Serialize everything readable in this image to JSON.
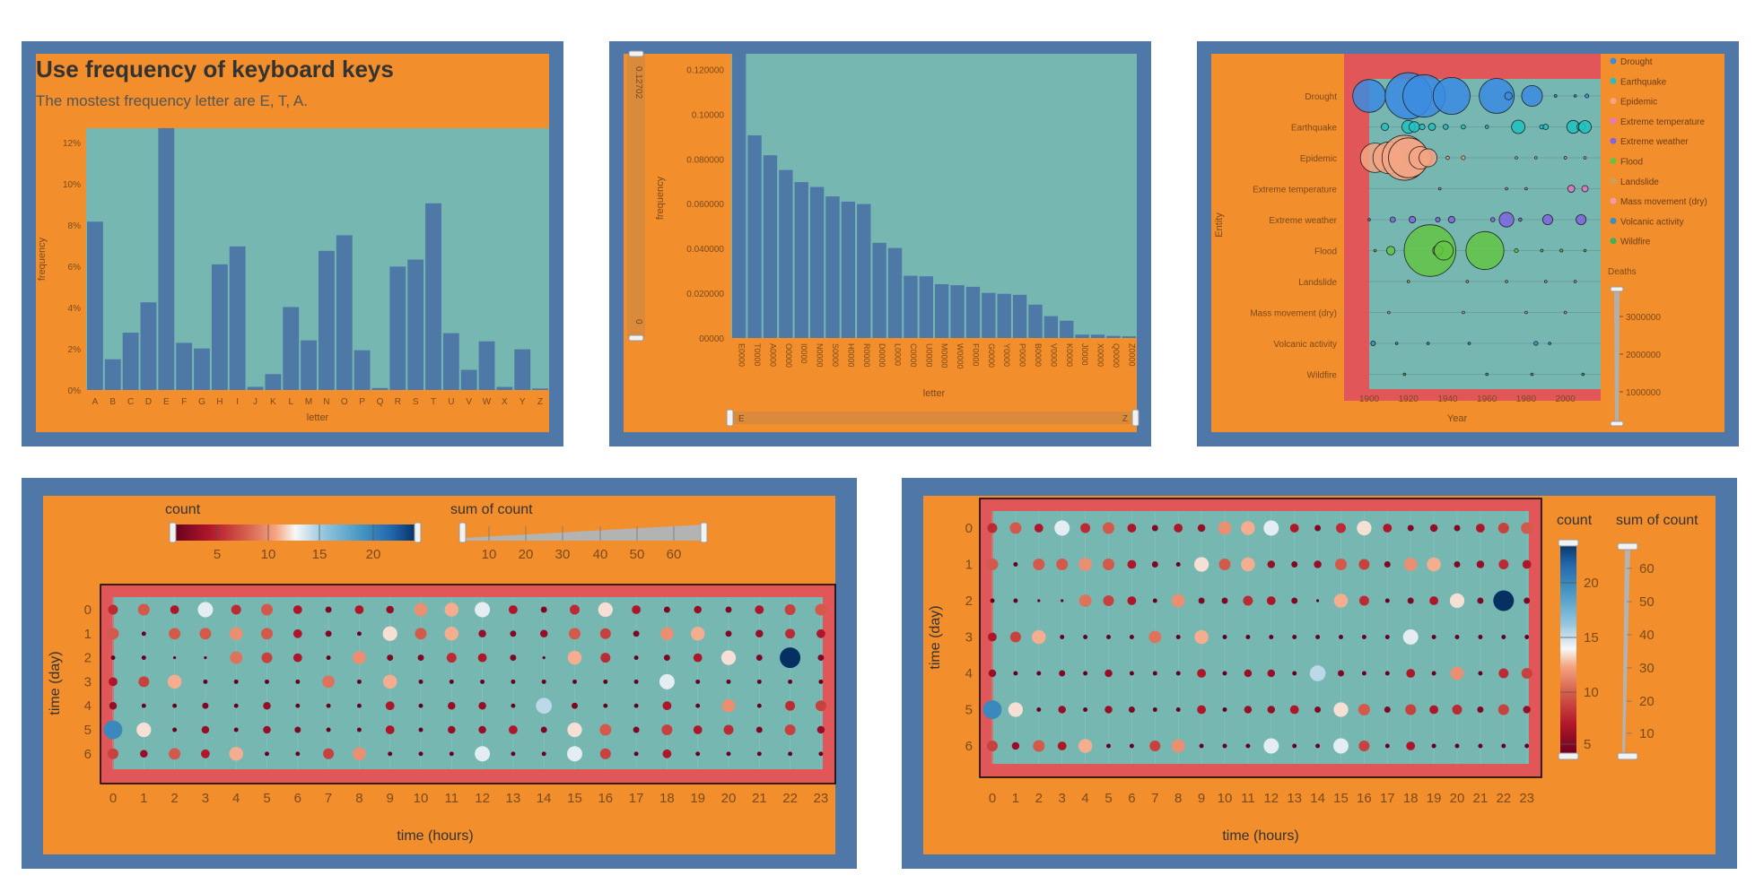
{
  "colors": {
    "frame": "#4f77a8",
    "orange": "#f28e2b",
    "teal": "#76b7b2",
    "red": "#e15759",
    "bar": "#4e79a7",
    "bubbleStroke": "#222222"
  },
  "chart_data": [
    {
      "type": "bar",
      "title": "Use frequency of keyboard keys",
      "subtitle": "The mostest frequency letter are E, T, A.",
      "xlabel": "letter",
      "ylabel": "frequency",
      "categories": [
        "A",
        "B",
        "C",
        "D",
        "E",
        "F",
        "G",
        "H",
        "I",
        "J",
        "K",
        "L",
        "M",
        "N",
        "O",
        "P",
        "Q",
        "R",
        "S",
        "T",
        "U",
        "V",
        "W",
        "X",
        "Y",
        "Z"
      ],
      "values": [
        0.08167,
        0.01492,
        0.02782,
        0.04253,
        0.12702,
        0.02288,
        0.02015,
        0.06094,
        0.06966,
        0.00153,
        0.00772,
        0.04025,
        0.02406,
        0.06749,
        0.07507,
        0.01929,
        0.00095,
        0.05987,
        0.06327,
        0.09056,
        0.02758,
        0.00978,
        0.0236,
        0.0015,
        0.01974,
        0.00074
      ],
      "yticks": [
        "0%",
        "2%",
        "4%",
        "6%",
        "8%",
        "10%",
        "12%"
      ],
      "ylim": [
        0,
        0.127
      ]
    },
    {
      "type": "bar",
      "xlabel": "letter",
      "ylabel": "frequency",
      "categories": [
        "E",
        "T",
        "A",
        "O",
        "I",
        "N",
        "S",
        "H",
        "R",
        "D",
        "L",
        "C",
        "U",
        "M",
        "W",
        "F",
        "G",
        "Y",
        "P",
        "B",
        "V",
        "K",
        "J",
        "X",
        "Q",
        "Z"
      ],
      "tick_labels": [
        "E0000",
        "T0000",
        "A0000",
        "O0000",
        "I0000",
        "N0000",
        "S0000",
        "H0000",
        "R0000",
        "D0000",
        "L0000",
        "C0000",
        "U0000",
        "M0000",
        "W0000",
        "F0000",
        "G0000",
        "Y0000",
        "P0000",
        "B0000",
        "V0000",
        "K0000",
        "J0000",
        "X0000",
        "Q0000",
        "Z0000"
      ],
      "values": [
        0.12702,
        0.09056,
        0.08167,
        0.07507,
        0.06966,
        0.06749,
        0.06327,
        0.06094,
        0.05987,
        0.04253,
        0.04025,
        0.02782,
        0.02758,
        0.02406,
        0.0236,
        0.02288,
        0.02015,
        0.01974,
        0.01929,
        0.01492,
        0.00978,
        0.00772,
        0.00153,
        0.0015,
        0.00095,
        0.00074
      ],
      "yticks": [
        "00000",
        "0.020000",
        "0.040000",
        "0.060000",
        "0.080000",
        "0.10000",
        "0.120000"
      ],
      "ylim": [
        0,
        0.127
      ],
      "slider": {
        "top_label": "0.12702",
        "bottom_label": "0",
        "start_label": "E",
        "end_label": "Z"
      }
    },
    {
      "type": "scatter",
      "xlabel": "Year",
      "ylabel": "Entity",
      "xlim": [
        1900,
        2018
      ],
      "xticks": [
        {
          "v": 1900,
          "l": "1900"
        },
        {
          "v": 1920,
          "l": "1920"
        },
        {
          "v": 1940,
          "l": "1940"
        },
        {
          "v": 1960,
          "l": "1960"
        },
        {
          "v": 1980,
          "l": "1980"
        },
        {
          "v": 2000,
          "l": "2000"
        }
      ],
      "entities": [
        "Drought",
        "Earthquake",
        "Epidemic",
        "Extreme temperature",
        "Extreme weather",
        "Flood",
        "Landslide",
        "Mass movement (dry)",
        "Volcanic activity",
        "Wildfire"
      ],
      "legend": [
        {
          "label": "Drought",
          "color": "#3b8be0"
        },
        {
          "label": "Earthquake",
          "color": "#1fc2c2"
        },
        {
          "label": "Epidemic",
          "color": "#f4a582"
        },
        {
          "label": "Extreme temperature",
          "color": "#e377c2"
        },
        {
          "label": "Extreme weather",
          "color": "#8064e0"
        },
        {
          "label": "Flood",
          "color": "#63c443"
        },
        {
          "label": "Landslide",
          "color": "#c9a15a"
        },
        {
          "label": "Mass movement (dry)",
          "color": "#f29bb0"
        },
        {
          "label": "Volcanic activity",
          "color": "#3a8fbf"
        },
        {
          "label": "Wildfire",
          "color": "#3db05a"
        }
      ],
      "size_legend": {
        "title": "Deaths",
        "ticks": [
          "3000000",
          "2000000",
          "1000000"
        ],
        "max": 3500000
      },
      "points": [
        {
          "e": 0,
          "x": 1900,
          "d": 1500000
        },
        {
          "e": 0,
          "x": 1920,
          "d": 3000000
        },
        {
          "e": 0,
          "x": 1928,
          "d": 2500000
        },
        {
          "e": 0,
          "x": 1942,
          "d": 1900000
        },
        {
          "e": 0,
          "x": 1965,
          "d": 1700000
        },
        {
          "e": 0,
          "x": 1983,
          "d": 600000
        },
        {
          "e": 0,
          "x": 1971,
          "d": 80000
        },
        {
          "e": 0,
          "x": 1995,
          "d": 10000
        },
        {
          "e": 0,
          "x": 2005,
          "d": 8000
        },
        {
          "e": 0,
          "x": 2011,
          "d": 20000
        },
        {
          "e": 1,
          "x": 1908,
          "d": 75000
        },
        {
          "e": 1,
          "x": 1920,
          "d": 235000
        },
        {
          "e": 1,
          "x": 1923,
          "d": 150000
        },
        {
          "e": 1,
          "x": 1927,
          "d": 45000
        },
        {
          "e": 1,
          "x": 1932,
          "d": 70000
        },
        {
          "e": 1,
          "x": 1939,
          "d": 35000
        },
        {
          "e": 1,
          "x": 1948,
          "d": 25000
        },
        {
          "e": 1,
          "x": 1960,
          "d": 15000
        },
        {
          "e": 1,
          "x": 1976,
          "d": 250000
        },
        {
          "e": 1,
          "x": 1988,
          "d": 25000
        },
        {
          "e": 1,
          "x": 1990,
          "d": 40000
        },
        {
          "e": 1,
          "x": 2004,
          "d": 230000
        },
        {
          "e": 1,
          "x": 2008,
          "d": 90000
        },
        {
          "e": 1,
          "x": 2010,
          "d": 220000
        },
        {
          "e": 2,
          "x": 1903,
          "d": 1200000
        },
        {
          "e": 2,
          "x": 1910,
          "d": 1400000
        },
        {
          "e": 2,
          "x": 1918,
          "d": 2800000
        },
        {
          "e": 2,
          "x": 1920,
          "d": 2200000
        },
        {
          "e": 2,
          "x": 1926,
          "d": 700000
        },
        {
          "e": 2,
          "x": 1930,
          "d": 450000
        },
        {
          "e": 2,
          "x": 1940,
          "d": 15000
        },
        {
          "e": 2,
          "x": 1948,
          "d": 20000
        },
        {
          "e": 2,
          "x": 1975,
          "d": 6000
        },
        {
          "e": 2,
          "x": 1985,
          "d": 5000
        },
        {
          "e": 2,
          "x": 2000,
          "d": 9000
        },
        {
          "e": 2,
          "x": 2010,
          "d": 8000
        },
        {
          "e": 3,
          "x": 1936,
          "d": 3000
        },
        {
          "e": 3,
          "x": 1970,
          "d": 2000
        },
        {
          "e": 3,
          "x": 1980,
          "d": 1500
        },
        {
          "e": 3,
          "x": 2003,
          "d": 70000
        },
        {
          "e": 3,
          "x": 2010,
          "d": 55000
        },
        {
          "e": 4,
          "x": 1900,
          "d": 6000
        },
        {
          "e": 4,
          "x": 1912,
          "d": 40000
        },
        {
          "e": 4,
          "x": 1922,
          "d": 60000
        },
        {
          "e": 4,
          "x": 1935,
          "d": 30000
        },
        {
          "e": 4,
          "x": 1942,
          "d": 60000
        },
        {
          "e": 4,
          "x": 1963,
          "d": 25000
        },
        {
          "e": 4,
          "x": 1970,
          "d": 300000
        },
        {
          "e": 4,
          "x": 1977,
          "d": 15000
        },
        {
          "e": 4,
          "x": 1991,
          "d": 140000
        },
        {
          "e": 4,
          "x": 2008,
          "d": 140000
        },
        {
          "e": 5,
          "x": 1903,
          "d": 3000
        },
        {
          "e": 5,
          "x": 1911,
          "d": 100000
        },
        {
          "e": 5,
          "x": 1931,
          "d": 3700000
        },
        {
          "e": 5,
          "x": 1935,
          "d": 145000
        },
        {
          "e": 5,
          "x": 1938,
          "d": 500000
        },
        {
          "e": 5,
          "x": 1959,
          "d": 2000000
        },
        {
          "e": 5,
          "x": 1975,
          "d": 20000
        },
        {
          "e": 5,
          "x": 1988,
          "d": 10000
        },
        {
          "e": 5,
          "x": 1998,
          "d": 12000
        },
        {
          "e": 5,
          "x": 2010,
          "d": 5000
        },
        {
          "e": 6,
          "x": 1920,
          "d": 5000
        },
        {
          "e": 6,
          "x": 1950,
          "d": 1500
        },
        {
          "e": 6,
          "x": 1970,
          "d": 3000
        },
        {
          "e": 6,
          "x": 1990,
          "d": 2000
        },
        {
          "e": 6,
          "x": 2005,
          "d": 1500
        },
        {
          "e": 7,
          "x": 1910,
          "d": 500
        },
        {
          "e": 7,
          "x": 1948,
          "d": 600
        },
        {
          "e": 7,
          "x": 1980,
          "d": 300
        },
        {
          "e": 7,
          "x": 2000,
          "d": 400
        },
        {
          "e": 8,
          "x": 1902,
          "d": 29000
        },
        {
          "e": 8,
          "x": 1914,
          "d": 1000
        },
        {
          "e": 8,
          "x": 1930,
          "d": 1500
        },
        {
          "e": 8,
          "x": 1951,
          "d": 3000
        },
        {
          "e": 8,
          "x": 1985,
          "d": 23000
        },
        {
          "e": 8,
          "x": 1992,
          "d": 800
        },
        {
          "e": 9,
          "x": 1918,
          "d": 1000
        },
        {
          "e": 9,
          "x": 1960,
          "d": 200
        },
        {
          "e": 9,
          "x": 1983,
          "d": 300
        },
        {
          "e": 9,
          "x": 2009,
          "d": 200
        }
      ]
    },
    {
      "type": "scatter",
      "xlabel": "time (hours)",
      "ylabel": "time (day)",
      "xticks": [
        "0",
        "1",
        "2",
        "3",
        "4",
        "5",
        "6",
        "7",
        "8",
        "9",
        "10",
        "11",
        "12",
        "13",
        "14",
        "15",
        "16",
        "17",
        "18",
        "19",
        "20",
        "21",
        "22",
        "23"
      ],
      "yticks": [
        "0",
        "1",
        "2",
        "3",
        "4",
        "5",
        "6"
      ],
      "color_legend": {
        "title": "count",
        "ticks": [
          "5",
          "10",
          "15",
          "20"
        ]
      },
      "size_legend": {
        "title": "sum of count",
        "ticks": [
          "10",
          "20",
          "30",
          "40",
          "50",
          "60"
        ]
      },
      "counts": [
        [
          5,
          7,
          4,
          12,
          5,
          7,
          4,
          2,
          4,
          3,
          9,
          10,
          12,
          4,
          2,
          5,
          11,
          4,
          2,
          3,
          2,
          4,
          6,
          7
        ],
        [
          7,
          1,
          7,
          7,
          9,
          7,
          4,
          2,
          1,
          11,
          7,
          10,
          3,
          2,
          3,
          7,
          6,
          2,
          9,
          10,
          2,
          3,
          5,
          4
        ],
        [
          1,
          1,
          0,
          0,
          8,
          6,
          4,
          1,
          9,
          2,
          2,
          5,
          4,
          2,
          0,
          10,
          5,
          1,
          2,
          4,
          11,
          2,
          22,
          2
        ],
        [
          4,
          6,
          10,
          1,
          1,
          1,
          1,
          8,
          1,
          10,
          1,
          1,
          1,
          1,
          1,
          1,
          1,
          1,
          12,
          1,
          1,
          1,
          1,
          1
        ],
        [
          3,
          1,
          1,
          2,
          1,
          3,
          1,
          1,
          1,
          4,
          1,
          3,
          3,
          1,
          13,
          2,
          1,
          1,
          4,
          1,
          9,
          1,
          5,
          6
        ],
        [
          18,
          11,
          1,
          3,
          1,
          3,
          2,
          1,
          1,
          4,
          1,
          3,
          3,
          4,
          2,
          11,
          7,
          2,
          6,
          4,
          5,
          2,
          6,
          3
        ],
        [
          6,
          3,
          7,
          4,
          10,
          1,
          1,
          6,
          9,
          1,
          1,
          1,
          12,
          1,
          1,
          12,
          6,
          1,
          4,
          1,
          1,
          1,
          1,
          1
        ]
      ]
    },
    {
      "type": "scatter",
      "xlabel": "time (hours)",
      "ylabel": "time (day)",
      "xticks": [
        "0",
        "1",
        "2",
        "3",
        "4",
        "5",
        "6",
        "7",
        "8",
        "9",
        "10",
        "11",
        "12",
        "13",
        "14",
        "15",
        "16",
        "17",
        "18",
        "19",
        "20",
        "21",
        "22",
        "23"
      ],
      "yticks": [
        "0",
        "1",
        "2",
        "3",
        "4",
        "5",
        "6"
      ],
      "color_legend": {
        "title": "count",
        "ticks": [
          "20",
          "15",
          "10",
          "5"
        ]
      },
      "size_legend": {
        "title": "sum of count",
        "ticks": [
          "60",
          "50",
          "40",
          "30",
          "20",
          "10"
        ]
      },
      "counts": [
        [
          5,
          7,
          4,
          12,
          5,
          7,
          4,
          2,
          4,
          3,
          9,
          10,
          12,
          4,
          2,
          5,
          11,
          4,
          2,
          3,
          2,
          4,
          6,
          7
        ],
        [
          7,
          1,
          7,
          7,
          9,
          7,
          4,
          2,
          1,
          11,
          7,
          10,
          3,
          2,
          3,
          7,
          6,
          2,
          9,
          10,
          2,
          3,
          5,
          4
        ],
        [
          1,
          1,
          0,
          0,
          8,
          6,
          4,
          1,
          9,
          2,
          2,
          5,
          4,
          2,
          0,
          10,
          5,
          1,
          2,
          4,
          11,
          2,
          22,
          2
        ],
        [
          4,
          6,
          10,
          1,
          1,
          1,
          1,
          8,
          1,
          10,
          1,
          1,
          1,
          1,
          1,
          1,
          1,
          1,
          12,
          1,
          1,
          1,
          1,
          1
        ],
        [
          3,
          1,
          1,
          2,
          1,
          3,
          1,
          1,
          1,
          4,
          1,
          3,
          3,
          1,
          13,
          2,
          1,
          1,
          4,
          1,
          9,
          1,
          5,
          6
        ],
        [
          18,
          11,
          1,
          3,
          1,
          3,
          2,
          1,
          1,
          4,
          1,
          3,
          3,
          4,
          2,
          11,
          7,
          2,
          6,
          4,
          5,
          2,
          6,
          3
        ],
        [
          6,
          3,
          7,
          4,
          10,
          1,
          1,
          6,
          9,
          1,
          1,
          1,
          12,
          1,
          1,
          12,
          6,
          1,
          4,
          1,
          1,
          1,
          1,
          1
        ]
      ]
    }
  ]
}
